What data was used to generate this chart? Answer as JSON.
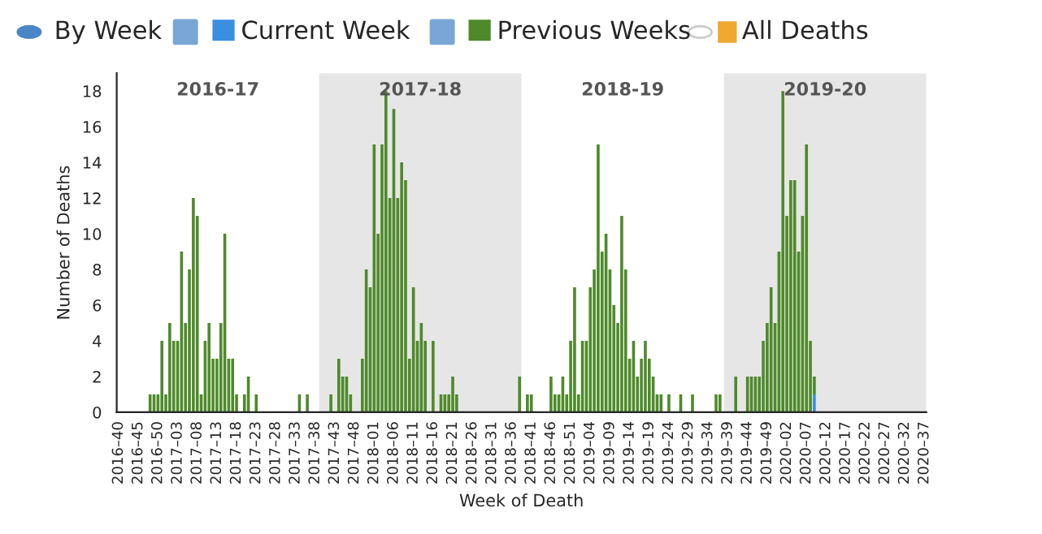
{
  "chart_data": {
    "type": "bar",
    "xlabel": "Week of Death",
    "ylabel": "Number of Deaths",
    "categories": [
      "2016–40",
      null,
      null,
      null,
      null,
      "2016–45",
      null,
      null,
      null,
      null,
      "2016–50",
      null,
      null,
      null,
      null,
      "2017–03",
      null,
      null,
      null,
      null,
      "2017–08",
      null,
      null,
      null,
      null,
      "2017–13",
      null,
      null,
      null,
      null,
      "2017–18",
      null,
      null,
      null,
      null,
      "2017–23",
      null,
      null,
      null,
      null,
      "2017–28",
      null,
      null,
      null,
      null,
      "2017–33",
      null,
      null,
      null,
      null,
      "2017–38",
      null,
      null,
      null,
      null,
      "2017–43",
      null,
      null,
      null,
      null,
      "2017–48",
      null,
      null,
      null,
      null,
      "2018–01",
      null,
      null,
      null,
      null,
      "2018–06",
      null,
      null,
      null,
      null,
      "2018–11",
      null,
      null,
      null,
      null,
      "2018–16",
      null,
      null,
      null,
      null,
      "2018–21",
      null,
      null,
      null,
      null,
      "2018–26",
      null,
      null,
      null,
      null,
      "2018–31",
      null,
      null,
      null,
      null,
      "2018–36",
      null,
      null,
      null,
      null,
      "2018–41",
      null,
      null,
      null,
      null,
      "2018–46",
      null,
      null,
      null,
      null,
      "2018–51",
      null,
      null,
      null,
      null,
      "2019–04",
      null,
      null,
      null,
      null,
      "2019–09",
      null,
      null,
      null,
      null,
      "2019–14",
      null,
      null,
      null,
      null,
      "2019–19",
      null,
      null,
      null,
      null,
      "2019–24",
      null,
      null,
      null,
      null,
      "2019–29",
      null,
      null,
      null,
      null,
      "2019–34",
      null,
      null,
      null,
      null,
      "2019–39",
      null,
      null,
      null,
      null,
      "2019–44",
      null,
      null,
      null,
      null,
      "2019–49",
      null,
      null,
      null,
      null,
      "2020–02",
      null,
      null,
      null,
      null,
      "2020–07",
      null,
      null,
      null,
      null,
      "2020–12",
      null,
      null,
      null,
      null,
      "2020–17",
      null,
      null,
      null,
      null,
      "2020–22",
      null,
      null,
      null,
      null,
      "2020–27",
      null,
      null,
      null,
      null,
      "2020–32",
      null,
      null,
      null,
      null,
      "2020–37"
    ],
    "stacked": true,
    "series": [
      {
        "name": "Current Week",
        "color": "#3b8fe0",
        "values": [
          null,
          null,
          null,
          null,
          null,
          null,
          null,
          null,
          null,
          null,
          null,
          null,
          null,
          null,
          null,
          null,
          null,
          null,
          null,
          null,
          null,
          null,
          null,
          null,
          null,
          null,
          null,
          null,
          null,
          null,
          null,
          null,
          null,
          null,
          null,
          null,
          null,
          null,
          null,
          null,
          null,
          null,
          null,
          null,
          null,
          null,
          null,
          null,
          null,
          null,
          null,
          null,
          null,
          null,
          null,
          null,
          null,
          null,
          null,
          null,
          null,
          null,
          null,
          null,
          null,
          null,
          null,
          null,
          null,
          null,
          null,
          null,
          null,
          null,
          null,
          null,
          null,
          null,
          null,
          null,
          null,
          null,
          null,
          null,
          null,
          null,
          null,
          null,
          null,
          null,
          null,
          null,
          null,
          null,
          null,
          null,
          null,
          null,
          null,
          null,
          null,
          null,
          null,
          null,
          null,
          null,
          null,
          null,
          null,
          null,
          null,
          null,
          null,
          null,
          null,
          null,
          null,
          null,
          null,
          null,
          null,
          null,
          null,
          null,
          null,
          null,
          null,
          null,
          null,
          null,
          null,
          null,
          null,
          null,
          null,
          null,
          null,
          null,
          null,
          null,
          null,
          null,
          null,
          null,
          null,
          null,
          null,
          null,
          null,
          null,
          null,
          null,
          null,
          null,
          null,
          null,
          null,
          null,
          null,
          null,
          null,
          null,
          null,
          null,
          null,
          null,
          null,
          null,
          null,
          null,
          null,
          null,
          null,
          null,
          null,
          null,
          null,
          1,
          null,
          null,
          null,
          null,
          null,
          null,
          null,
          null,
          null,
          null,
          null,
          null,
          null,
          null,
          null,
          null,
          null,
          null,
          null,
          null,
          null,
          null,
          null,
          null,
          null,
          null,
          null,
          null
        ]
      },
      {
        "name": "Previous Weeks",
        "color": "#4e8a2a",
        "values": [
          0,
          0,
          0,
          0,
          0,
          0,
          0,
          0,
          1,
          1,
          1,
          4,
          1,
          5,
          4,
          4,
          9,
          5,
          8,
          12,
          11,
          1,
          4,
          5,
          3,
          3,
          5,
          10,
          3,
          3,
          1,
          0,
          1,
          2,
          0,
          1,
          0,
          0,
          0,
          0,
          0,
          0,
          0,
          0,
          0,
          0,
          1,
          0,
          1,
          0,
          0,
          0,
          0,
          0,
          1,
          0,
          3,
          2,
          2,
          1,
          0,
          0,
          3,
          8,
          7,
          15,
          10,
          15,
          18,
          12,
          17,
          12,
          14,
          13,
          3,
          7,
          4,
          5,
          4,
          0,
          4,
          0,
          1,
          1,
          1,
          2,
          1,
          0,
          0,
          0,
          0,
          0,
          0,
          0,
          0,
          0,
          0,
          0,
          0,
          0,
          0,
          0,
          2,
          0,
          1,
          1,
          0,
          0,
          0,
          0,
          2,
          1,
          1,
          2,
          1,
          4,
          7,
          1,
          4,
          4,
          7,
          8,
          15,
          9,
          10,
          8,
          6,
          5,
          11,
          8,
          3,
          4,
          2,
          3,
          4,
          3,
          2,
          1,
          1,
          0,
          1,
          0,
          0,
          1,
          0,
          0,
          1,
          0,
          0,
          0,
          0,
          0,
          1,
          1,
          0,
          0,
          0,
          2,
          0,
          0,
          2,
          2,
          2,
          2,
          4,
          5,
          7,
          5,
          9,
          18,
          11,
          13,
          13,
          9,
          11,
          15,
          4,
          1,
          null,
          null,
          null,
          null,
          null,
          null,
          null,
          null,
          null,
          null,
          null,
          null,
          null,
          null,
          null,
          null,
          null,
          null,
          null,
          null,
          null,
          null,
          null,
          null,
          null,
          null,
          null,
          null
        ]
      }
    ],
    "ylim": [
      0,
      19
    ],
    "yticks": [
      0,
      2,
      4,
      6,
      8,
      10,
      12,
      14,
      16,
      18
    ],
    "annotations": [
      "By Week",
      "All Deaths",
      "2016-17",
      "2017-18",
      "2018-19",
      "2019-20"
    ],
    "legend": "top",
    "grid": false
  }
}
